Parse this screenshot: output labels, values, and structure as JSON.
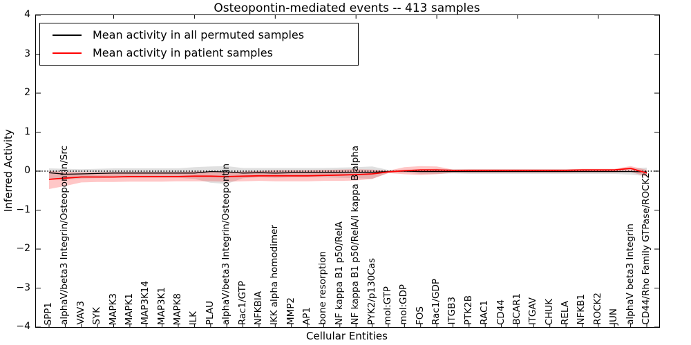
{
  "title": "Osteopontin-mediated events -- 413 samples",
  "axes": {
    "ylabel": "Inferred Activity",
    "xlabel": "Cellular Entities",
    "ytick_labels": [
      "4",
      "3",
      "2",
      "1",
      "0",
      "−1",
      "−2",
      "−3",
      "−4"
    ],
    "ytick_values": [
      4,
      3,
      2,
      1,
      0,
      -1,
      -2,
      -3,
      -4
    ]
  },
  "legend": {
    "items": [
      {
        "label": "Mean activity in all permuted samples",
        "color": "#000000"
      },
      {
        "label": "Mean activity in patient samples",
        "color": "#ff0000"
      }
    ]
  },
  "chart_data": {
    "type": "line",
    "title": "Osteopontin-mediated events -- 413 samples",
    "xlabel": "Cellular Entities",
    "ylabel": "Inferred Activity",
    "ylim": [
      -4,
      4
    ],
    "grid": false,
    "legend_position": "upper left",
    "zero_line": true,
    "top_tick_indices": [
      4,
      9,
      14,
      19,
      24,
      29,
      34
    ],
    "categories": [
      "SPP1",
      "alphaV/beta3 Integrin/Osteopontin/Src",
      "VAV3",
      "SYK",
      "MAPK3",
      "MAPK1",
      "MAP3K14",
      "MAP3K1",
      "MAPK8",
      "ILK",
      "PLAU",
      "alphaV/beta3 Integrin/Osteopontin",
      "Rac1/GTP",
      "NFKBIA",
      "IKK alpha homodimer",
      "MMP2",
      "AP1",
      "bone resorption",
      "NF kappa B1 p50/RelA",
      "NF kappa B1 p50/RelA/I kappa B alpha",
      "PYK2/p130Cas",
      "mol:GTP",
      "mol:GDP",
      "FOS",
      "Rac1/GDP",
      "ITGB3",
      "PTK2B",
      "RAC1",
      "CD44",
      "BCAR1",
      "ITGAV",
      "CHUK",
      "RELA",
      "NFKB1",
      "ROCK2",
      "JUN",
      "alphaV beta3 Integrin",
      "CD44/Rho Family GTPase/ROCK2"
    ],
    "series": [
      {
        "name": "Mean activity in all permuted samples",
        "color": "#000000",
        "line_width": 1.3,
        "band_color": "#999999",
        "band_opacity": 0.3,
        "values": [
          -0.04,
          -0.08,
          -0.07,
          -0.06,
          -0.05,
          -0.05,
          -0.05,
          -0.05,
          -0.05,
          -0.05,
          -0.01,
          -0.02,
          -0.05,
          -0.04,
          -0.05,
          -0.04,
          -0.04,
          -0.04,
          -0.04,
          -0.03,
          -0.03,
          -0.01,
          0.0,
          -0.01,
          -0.01,
          -0.01,
          -0.01,
          -0.01,
          -0.01,
          -0.01,
          -0.01,
          -0.01,
          -0.01,
          -0.01,
          -0.01,
          -0.01,
          -0.01,
          -0.02
        ],
        "band_upper": [
          0.07,
          0.06,
          0.05,
          0.06,
          0.07,
          0.07,
          0.07,
          0.07,
          0.07,
          0.1,
          0.12,
          0.13,
          0.08,
          0.08,
          0.08,
          0.08,
          0.08,
          0.08,
          0.09,
          0.1,
          0.12,
          0.03,
          0.03,
          0.05,
          0.06,
          0.05,
          0.05,
          0.05,
          0.05,
          0.05,
          0.05,
          0.05,
          0.05,
          0.05,
          0.05,
          0.05,
          0.07,
          0.09
        ],
        "band_lower": [
          -0.18,
          -0.22,
          -0.19,
          -0.18,
          -0.17,
          -0.17,
          -0.17,
          -0.17,
          -0.17,
          -0.2,
          -0.3,
          -0.33,
          -0.18,
          -0.16,
          -0.17,
          -0.16,
          -0.16,
          -0.16,
          -0.17,
          -0.18,
          -0.2,
          -0.05,
          -0.04,
          -0.07,
          -0.07,
          -0.06,
          -0.07,
          -0.07,
          -0.07,
          -0.07,
          -0.07,
          -0.07,
          -0.07,
          -0.07,
          -0.07,
          -0.07,
          -0.09,
          -0.13
        ]
      },
      {
        "name": "Mean activity in patient samples",
        "color": "#ff0000",
        "line_width": 1.8,
        "band_color": "#ff0000",
        "band_opacity": 0.22,
        "values": [
          -0.21,
          -0.18,
          -0.15,
          -0.15,
          -0.15,
          -0.14,
          -0.14,
          -0.14,
          -0.14,
          -0.13,
          -0.13,
          -0.14,
          -0.13,
          -0.12,
          -0.12,
          -0.12,
          -0.12,
          -0.11,
          -0.1,
          -0.09,
          -0.07,
          -0.02,
          0.01,
          0.03,
          0.03,
          0.02,
          0.02,
          0.02,
          0.02,
          0.02,
          0.02,
          0.02,
          0.02,
          0.03,
          0.03,
          0.03,
          0.07,
          -0.05
        ],
        "band_upper": [
          0.0,
          -0.02,
          -0.03,
          -0.03,
          -0.02,
          -0.02,
          -0.02,
          -0.02,
          -0.02,
          -0.01,
          -0.01,
          -0.02,
          -0.01,
          0.0,
          0.02,
          0.02,
          0.02,
          0.03,
          0.04,
          0.05,
          0.04,
          0.01,
          0.1,
          0.13,
          0.12,
          0.04,
          0.05,
          0.05,
          0.05,
          0.05,
          0.05,
          0.05,
          0.05,
          0.06,
          0.06,
          0.06,
          0.13,
          0.03
        ],
        "band_lower": [
          -0.46,
          -0.38,
          -0.29,
          -0.28,
          -0.28,
          -0.27,
          -0.27,
          -0.27,
          -0.26,
          -0.26,
          -0.26,
          -0.27,
          -0.26,
          -0.25,
          -0.26,
          -0.26,
          -0.26,
          -0.25,
          -0.25,
          -0.24,
          -0.2,
          -0.05,
          -0.08,
          -0.1,
          -0.08,
          -0.04,
          -0.04,
          -0.04,
          -0.04,
          -0.04,
          -0.04,
          -0.04,
          -0.04,
          -0.03,
          -0.03,
          -0.03,
          -0.02,
          -0.14
        ]
      }
    ]
  }
}
